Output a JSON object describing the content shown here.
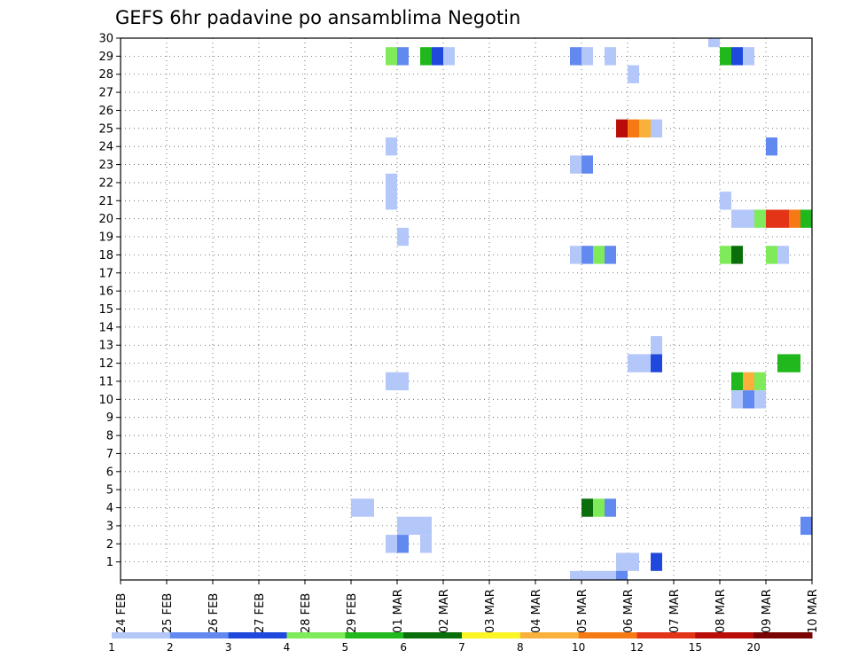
{
  "chart_data": {
    "type": "heatmap",
    "title": "GEFS 6hr padavine po ansamblima Negotin",
    "xlabel": "",
    "ylabel": "",
    "x_ticks": [
      "24 FEB",
      "25 FEB",
      "26 FEB",
      "27 FEB",
      "28 FEB",
      "29 FEB",
      "01 MAR",
      "02 MAR",
      "03 MAR",
      "04 MAR",
      "05 MAR",
      "06 MAR",
      "07 MAR",
      "08 MAR",
      "09 MAR",
      "10 MAR"
    ],
    "x_range_days": [
      0,
      15
    ],
    "y_ticks": [
      1,
      2,
      3,
      4,
      5,
      6,
      7,
      8,
      9,
      10,
      11,
      12,
      13,
      14,
      15,
      16,
      17,
      18,
      19,
      20,
      21,
      22,
      23,
      24,
      25,
      26,
      27,
      28,
      29,
      30
    ],
    "y_range": [
      0,
      30
    ],
    "step_days": 0.25,
    "grid": true,
    "legend_position": "bottom",
    "colorbar": {
      "labels": [
        "1",
        "2",
        "3",
        "4",
        "5",
        "6",
        "7",
        "8",
        "10",
        "12",
        "15",
        "20"
      ],
      "colors": [
        "#b4c7f9",
        "#6189ef",
        "#1f49dd",
        "#7fea5a",
        "#20b81c",
        "#0a6e0a",
        "#fbf525",
        "#f9b13c",
        "#f57a14",
        "#e33418",
        "#b80d08",
        "#7a0404"
      ]
    },
    "cells": [
      {
        "member": 29,
        "day": 5.75,
        "bin": 4
      },
      {
        "member": 29,
        "day": 6.0,
        "bin": 2
      },
      {
        "member": 29,
        "day": 6.5,
        "bin": 5
      },
      {
        "member": 29,
        "day": 6.75,
        "bin": 3
      },
      {
        "member": 29,
        "day": 7.0,
        "bin": 1
      },
      {
        "member": 29,
        "day": 9.75,
        "bin": 2
      },
      {
        "member": 29,
        "day": 10.0,
        "bin": 1
      },
      {
        "member": 29,
        "day": 10.5,
        "bin": 1
      },
      {
        "member": 29,
        "day": 13.0,
        "bin": 5
      },
      {
        "member": 29,
        "day": 13.25,
        "bin": 3
      },
      {
        "member": 29,
        "day": 13.5,
        "bin": 1
      },
      {
        "member": 30,
        "day": 12.75,
        "bin": 1
      },
      {
        "member": 28,
        "day": 11.0,
        "bin": 1
      },
      {
        "member": 25,
        "day": 10.75,
        "bin": 11
      },
      {
        "member": 25,
        "day": 11.0,
        "bin": 9
      },
      {
        "member": 25,
        "day": 11.25,
        "bin": 8
      },
      {
        "member": 25,
        "day": 11.5,
        "bin": 1
      },
      {
        "member": 24,
        "day": 5.75,
        "bin": 1
      },
      {
        "member": 24,
        "day": 14.0,
        "bin": 2
      },
      {
        "member": 23,
        "day": 9.75,
        "bin": 1
      },
      {
        "member": 23,
        "day": 10.0,
        "bin": 2
      },
      {
        "member": 22,
        "day": 5.75,
        "bin": 1
      },
      {
        "member": 21,
        "day": 5.75,
        "bin": 1
      },
      {
        "member": 21,
        "day": 13.0,
        "bin": 1
      },
      {
        "member": 20,
        "day": 13.25,
        "bin": 1
      },
      {
        "member": 20,
        "day": 13.5,
        "bin": 1
      },
      {
        "member": 20,
        "day": 13.75,
        "bin": 4
      },
      {
        "member": 20,
        "day": 14.0,
        "bin": 10
      },
      {
        "member": 20,
        "day": 14.25,
        "bin": 10
      },
      {
        "member": 20,
        "day": 14.5,
        "bin": 9
      },
      {
        "member": 20,
        "day": 14.75,
        "bin": 5
      },
      {
        "member": 19,
        "day": 6.0,
        "bin": 1
      },
      {
        "member": 18,
        "day": 9.75,
        "bin": 1
      },
      {
        "member": 18,
        "day": 10.0,
        "bin": 2
      },
      {
        "member": 18,
        "day": 10.25,
        "bin": 4
      },
      {
        "member": 18,
        "day": 10.5,
        "bin": 2
      },
      {
        "member": 18,
        "day": 13.0,
        "bin": 4
      },
      {
        "member": 18,
        "day": 13.25,
        "bin": 6
      },
      {
        "member": 18,
        "day": 14.0,
        "bin": 4
      },
      {
        "member": 18,
        "day": 14.25,
        "bin": 1
      },
      {
        "member": 13,
        "day": 11.5,
        "bin": 1
      },
      {
        "member": 12,
        "day": 11.0,
        "bin": 1
      },
      {
        "member": 12,
        "day": 11.25,
        "bin": 1
      },
      {
        "member": 12,
        "day": 11.5,
        "bin": 3
      },
      {
        "member": 12,
        "day": 14.25,
        "bin": 5
      },
      {
        "member": 12,
        "day": 14.5,
        "bin": 5
      },
      {
        "member": 11,
        "day": 5.75,
        "bin": 1
      },
      {
        "member": 11,
        "day": 6.0,
        "bin": 1
      },
      {
        "member": 11,
        "day": 13.25,
        "bin": 5
      },
      {
        "member": 11,
        "day": 13.5,
        "bin": 8
      },
      {
        "member": 11,
        "day": 13.75,
        "bin": 4
      },
      {
        "member": 10,
        "day": 13.25,
        "bin": 1
      },
      {
        "member": 10,
        "day": 13.5,
        "bin": 2
      },
      {
        "member": 10,
        "day": 13.75,
        "bin": 1
      },
      {
        "member": 4,
        "day": 5.0,
        "bin": 1
      },
      {
        "member": 4,
        "day": 5.25,
        "bin": 1
      },
      {
        "member": 4,
        "day": 10.0,
        "bin": 6
      },
      {
        "member": 4,
        "day": 10.25,
        "bin": 4
      },
      {
        "member": 4,
        "day": 10.5,
        "bin": 2
      },
      {
        "member": 3,
        "day": 6.0,
        "bin": 1
      },
      {
        "member": 3,
        "day": 6.25,
        "bin": 1
      },
      {
        "member": 3,
        "day": 6.5,
        "bin": 1
      },
      {
        "member": 3,
        "day": 14.75,
        "bin": 2
      },
      {
        "member": 2,
        "day": 5.75,
        "bin": 1
      },
      {
        "member": 2,
        "day": 6.0,
        "bin": 2
      },
      {
        "member": 2,
        "day": 6.5,
        "bin": 1
      },
      {
        "member": 1,
        "day": 10.75,
        "bin": 1
      },
      {
        "member": 1,
        "day": 11.0,
        "bin": 1
      },
      {
        "member": 1,
        "day": 11.5,
        "bin": 3
      },
      {
        "member": 0,
        "day": 9.75,
        "bin": 1
      },
      {
        "member": 0,
        "day": 10.0,
        "bin": 1
      },
      {
        "member": 0,
        "day": 10.25,
        "bin": 1
      },
      {
        "member": 0,
        "day": 10.5,
        "bin": 1
      },
      {
        "member": 0,
        "day": 10.75,
        "bin": 2
      }
    ]
  }
}
